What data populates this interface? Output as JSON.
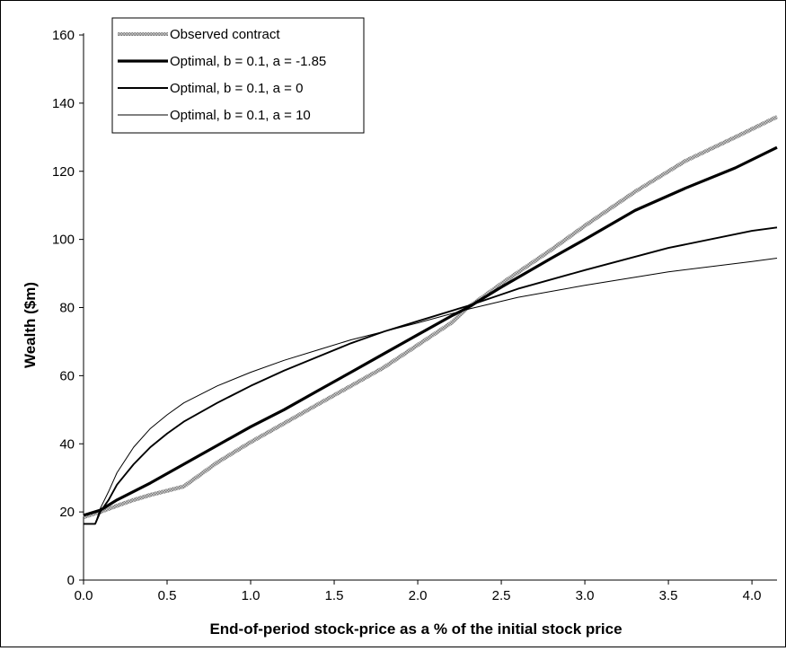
{
  "chart_data": {
    "type": "line",
    "title": "",
    "xlabel": "End-of-period stock-price as a % of the initial stock price",
    "ylabel": "Wealth ($m)",
    "xlim": [
      0,
      4.15
    ],
    "ylim": [
      0,
      160
    ],
    "x_ticks": [
      "0.0",
      "0.5",
      "1.0",
      "1.5",
      "2.0",
      "2.5",
      "3.0",
      "3.5",
      "4.0"
    ],
    "y_ticks": [
      "0",
      "20",
      "40",
      "60",
      "80",
      "100",
      "120",
      "140",
      "160"
    ],
    "grid": false,
    "legend_position": "top-left",
    "series": [
      {
        "name": "Observed contract",
        "color": "#9a9a9a",
        "style": "hatched",
        "points": [
          [
            0.0,
            18.5
          ],
          [
            0.1,
            20.0
          ],
          [
            0.2,
            21.8
          ],
          [
            0.3,
            23.5
          ],
          [
            0.4,
            25.0
          ],
          [
            0.5,
            26.2
          ],
          [
            0.6,
            27.5
          ],
          [
            0.7,
            31.0
          ],
          [
            0.8,
            34.5
          ],
          [
            0.9,
            37.5
          ],
          [
            1.0,
            40.5
          ],
          [
            1.2,
            46.0
          ],
          [
            1.4,
            51.5
          ],
          [
            1.6,
            57.0
          ],
          [
            1.8,
            62.5
          ],
          [
            2.0,
            69.0
          ],
          [
            2.2,
            75.5
          ],
          [
            2.3,
            80.0
          ],
          [
            2.5,
            87.0
          ],
          [
            2.8,
            97.0
          ],
          [
            3.0,
            104.0
          ],
          [
            3.3,
            114.0
          ],
          [
            3.6,
            123.0
          ],
          [
            3.9,
            130.0
          ],
          [
            4.15,
            136.0
          ]
        ]
      },
      {
        "name": "Optimal, b = 0.1, a = -1.85",
        "color": "#000000",
        "style": "thick",
        "points": [
          [
            0.0,
            19.0
          ],
          [
            0.1,
            20.5
          ],
          [
            0.2,
            23.5
          ],
          [
            0.4,
            28.5
          ],
          [
            0.6,
            34.0
          ],
          [
            0.8,
            39.5
          ],
          [
            1.0,
            45.0
          ],
          [
            1.2,
            50.0
          ],
          [
            1.4,
            55.5
          ],
          [
            1.6,
            61.0
          ],
          [
            1.8,
            66.5
          ],
          [
            2.0,
            72.0
          ],
          [
            2.2,
            77.5
          ],
          [
            2.3,
            80.0
          ],
          [
            2.5,
            86.0
          ],
          [
            2.8,
            94.5
          ],
          [
            3.0,
            100.0
          ],
          [
            3.3,
            108.5
          ],
          [
            3.6,
            115.0
          ],
          [
            3.9,
            121.0
          ],
          [
            4.15,
            127.0
          ]
        ]
      },
      {
        "name": "Optimal, b = 0.1, a = 0",
        "color": "#000000",
        "style": "medium",
        "points": [
          [
            0.0,
            16.5
          ],
          [
            0.07,
            16.5
          ],
          [
            0.1,
            20.0
          ],
          [
            0.15,
            23.5
          ],
          [
            0.2,
            28.0
          ],
          [
            0.3,
            34.0
          ],
          [
            0.4,
            39.0
          ],
          [
            0.5,
            43.0
          ],
          [
            0.6,
            46.5
          ],
          [
            0.8,
            52.0
          ],
          [
            1.0,
            57.0
          ],
          [
            1.2,
            61.5
          ],
          [
            1.4,
            65.5
          ],
          [
            1.6,
            69.5
          ],
          [
            1.8,
            73.0
          ],
          [
            2.0,
            76.0
          ],
          [
            2.3,
            80.5
          ],
          [
            2.6,
            85.5
          ],
          [
            3.0,
            91.0
          ],
          [
            3.5,
            97.5
          ],
          [
            4.0,
            102.5
          ],
          [
            4.15,
            103.5
          ]
        ]
      },
      {
        "name": "Optimal, b = 0.1, a = 10",
        "color": "#000000",
        "style": "thin",
        "points": [
          [
            0.0,
            16.5
          ],
          [
            0.07,
            16.5
          ],
          [
            0.1,
            21.0
          ],
          [
            0.15,
            26.0
          ],
          [
            0.2,
            31.5
          ],
          [
            0.3,
            39.0
          ],
          [
            0.4,
            44.5
          ],
          [
            0.5,
            48.5
          ],
          [
            0.6,
            52.0
          ],
          [
            0.8,
            57.0
          ],
          [
            1.0,
            61.0
          ],
          [
            1.2,
            64.5
          ],
          [
            1.4,
            67.5
          ],
          [
            1.6,
            70.5
          ],
          [
            1.8,
            73.0
          ],
          [
            2.0,
            75.5
          ],
          [
            2.3,
            79.5
          ],
          [
            2.6,
            83.0
          ],
          [
            3.0,
            86.5
          ],
          [
            3.5,
            90.5
          ],
          [
            4.0,
            93.5
          ],
          [
            4.15,
            94.5
          ]
        ]
      }
    ]
  }
}
